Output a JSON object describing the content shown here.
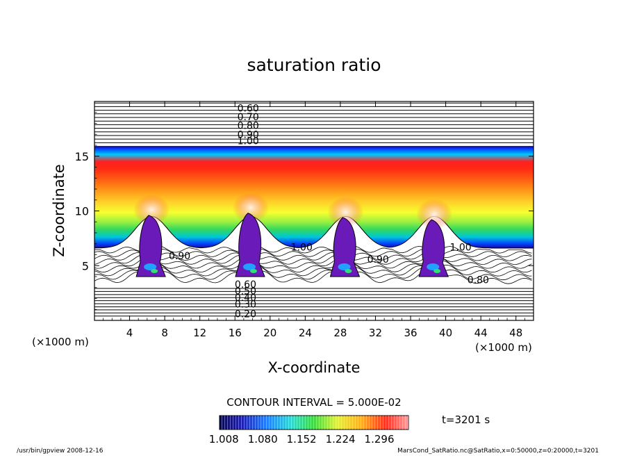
{
  "chart_data": {
    "type": "heatmap",
    "title": "saturation ratio",
    "xlabel": "X-coordinate",
    "ylabel": "Z-coordinate",
    "x_unit": "(×1000 m)",
    "y_unit": "(×1000 m)",
    "xlim": [
      0,
      50
    ],
    "ylim": [
      0,
      20
    ],
    "x_ticks": [
      4,
      8,
      12,
      16,
      20,
      24,
      28,
      32,
      36,
      40,
      44,
      48
    ],
    "y_ticks": [
      5,
      10,
      15
    ],
    "contour_interval_text": "CONTOUR INTERVAL = 5.000E-02",
    "contour_labels": [
      {
        "text": "0.60",
        "x": 17.5,
        "z": 19.4
      },
      {
        "text": "0.70",
        "x": 17.5,
        "z": 18.6
      },
      {
        "text": "0.80",
        "x": 17.5,
        "z": 17.8
      },
      {
        "text": "0.90",
        "x": 17.5,
        "z": 17.0
      },
      {
        "text": "1.00",
        "x": 17.5,
        "z": 16.4
      },
      {
        "text": "1.00",
        "x": 23.6,
        "z": 6.7
      },
      {
        "text": "0.90",
        "x": 9.7,
        "z": 5.9
      },
      {
        "text": "0.90",
        "x": 32.3,
        "z": 5.6
      },
      {
        "text": "1.00",
        "x": 41.7,
        "z": 6.7
      },
      {
        "text": "0.80",
        "x": 43.7,
        "z": 3.7
      },
      {
        "text": "0.60",
        "x": 17.2,
        "z": 3.3
      },
      {
        "text": "0.50",
        "x": 17.2,
        "z": 2.7
      },
      {
        "text": "0.40",
        "x": 17.2,
        "z": 2.1
      },
      {
        "text": "0.30",
        "x": 17.2,
        "z": 1.5
      },
      {
        "text": "0.20",
        "x": 17.2,
        "z": 0.6
      }
    ],
    "colorbar": {
      "min": 1.0,
      "max": 1.35,
      "tick_values": [
        1.008,
        1.08,
        1.152,
        1.224,
        1.296
      ],
      "tick_labels": [
        "1.008",
        "1.080",
        "1.152",
        "1.224",
        "1.296"
      ]
    },
    "plumes": [
      {
        "x": 6.5,
        "top": 9.6
      },
      {
        "x": 17.8,
        "top": 9.8
      },
      {
        "x": 28.6,
        "top": 9.4
      },
      {
        "x": 38.7,
        "top": 9.2
      }
    ]
  },
  "time_label": "t=3201 s",
  "footer": {
    "left": "/usr/bin/gpview   2008-12-16",
    "right": "MarsCond_SatRatio.nc@SatRatio,x=0:50000,z=0:20000,t=3201"
  }
}
